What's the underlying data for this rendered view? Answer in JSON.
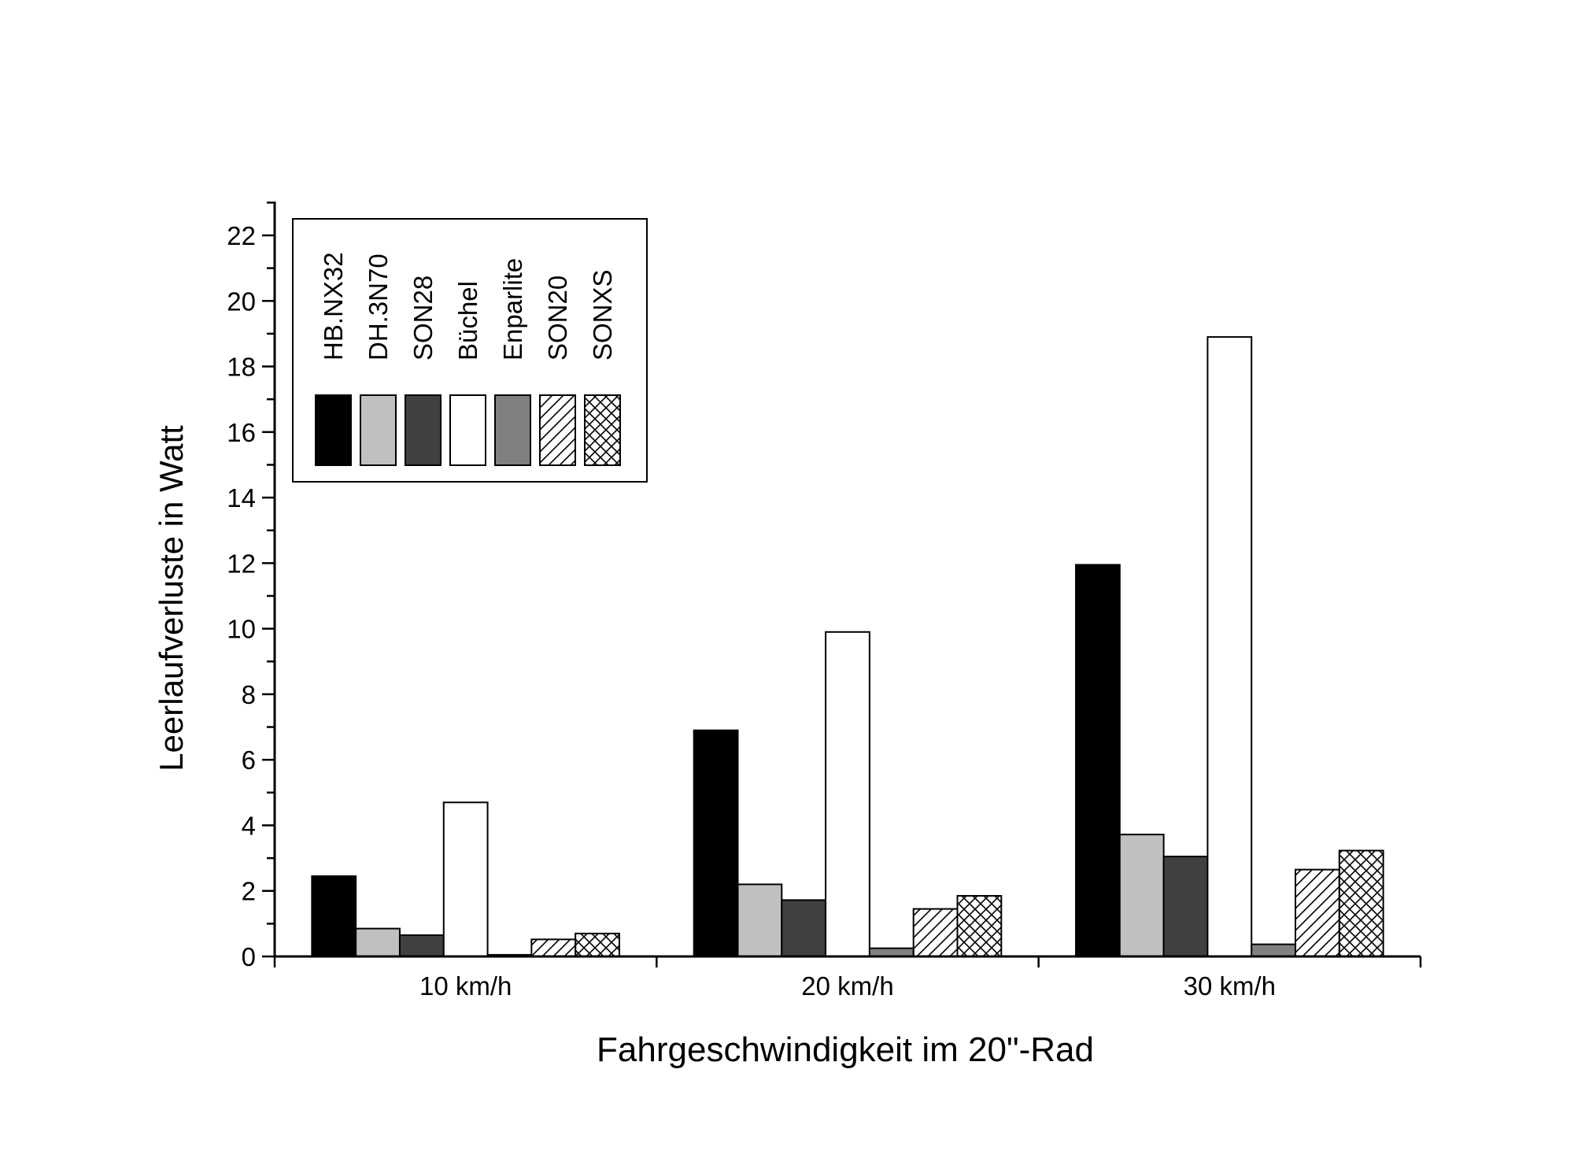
{
  "chart_data": {
    "type": "bar",
    "title": "",
    "xlabel": "Fahrgeschwindigkeit im 20\"-Rad",
    "ylabel": "Leerlaufverluste in Watt",
    "ylim": [
      0,
      23
    ],
    "yticks": [
      0,
      2,
      4,
      6,
      8,
      10,
      12,
      14,
      16,
      18,
      20,
      22
    ],
    "categories": [
      "10 km/h",
      "20 km/h",
      "30 km/h"
    ],
    "legend_position": "top-left",
    "grid": false,
    "series": [
      {
        "name": "HB.NX32",
        "fill": "#000000",
        "pattern": "solid",
        "values": [
          2.45,
          6.9,
          11.95
        ]
      },
      {
        "name": "DH.3N70",
        "fill": "#c0c0c0",
        "pattern": "solid",
        "values": [
          0.85,
          2.2,
          3.72
        ]
      },
      {
        "name": "SON28",
        "fill": "#404040",
        "pattern": "solid",
        "values": [
          0.65,
          1.72,
          3.05
        ]
      },
      {
        "name": "Büchel",
        "fill": "#ffffff",
        "pattern": "solid",
        "values": [
          4.7,
          9.9,
          18.9
        ]
      },
      {
        "name": "Enparlite",
        "fill": "#808080",
        "pattern": "solid",
        "values": [
          0.05,
          0.25,
          0.37
        ]
      },
      {
        "name": "SON20",
        "fill": "#ffffff",
        "pattern": "hatch",
        "values": [
          0.52,
          1.45,
          2.65
        ]
      },
      {
        "name": "SONXS",
        "fill": "#ffffff",
        "pattern": "crosshatch",
        "values": [
          0.7,
          1.85,
          3.23
        ]
      }
    ]
  }
}
